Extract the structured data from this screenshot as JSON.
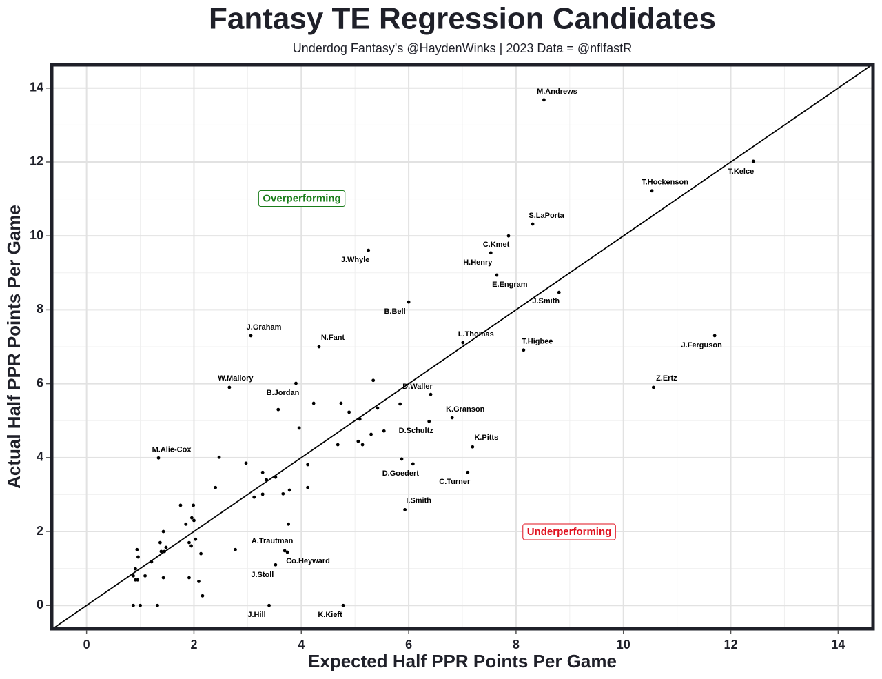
{
  "chart_data": {
    "type": "scatter",
    "title": "Fantasy TE Regression Candidates",
    "subtitle": "Underdog Fantasy's @HaydenWinks | 2023 Data = @nflfastR",
    "x_label": "Expected Half PPR Points Per Game",
    "y_label": "Actual Half PPR Points Per Game",
    "xlim": [
      -0.65,
      14.65
    ],
    "ylim": [
      -0.63,
      14.63
    ],
    "xticks": [
      0,
      2,
      4,
      6,
      8,
      10,
      12,
      14
    ],
    "yticks": [
      0,
      2,
      4,
      6,
      8,
      10,
      12,
      14
    ],
    "grid": true,
    "minor_grid": true,
    "diagonal": true,
    "color": "#000000",
    "points": {
      "x": [
        8.52,
        12.42,
        10.53,
        8.31,
        7.86,
        7.53,
        7.64,
        8.8,
        5.25,
        6.0,
        7.01,
        8.14,
        11.7,
        10.56,
        3.06,
        4.33,
        2.66,
        3.9,
        6.41,
        6.81,
        6.38,
        7.19,
        1.34,
        6.08,
        7.1,
        5.93,
        3.69,
        3.74,
        3.52,
        3.4,
        4.78,
        5.34,
        4.23,
        4.74,
        4.89,
        5.42,
        5.84,
        5.09,
        3.96,
        5.54,
        5.3,
        5.06,
        5.14,
        4.68,
        2.47,
        3.57,
        5.87,
        2.97,
        4.12,
        3.28,
        3.35,
        3.52,
        2.4,
        4.12,
        3.78,
        3.66,
        3.28,
        3.12,
        1.75,
        1.99,
        1.96,
        2.0,
        1.85,
        3.76,
        1.43,
        2.03,
        1.37,
        1.91,
        1.95,
        1.48,
        0.94,
        1.39,
        1.45,
        2.13,
        0.96,
        1.21,
        0.91,
        1.09,
        0.87,
        0.91,
        0.95,
        1.43,
        1.91,
        2.09,
        2.16,
        0.87,
        1.0,
        1.32,
        2.77
      ],
      "y": [
        13.68,
        12.02,
        11.22,
        10.32,
        10.0,
        9.54,
        8.94,
        8.47,
        9.61,
        8.21,
        7.11,
        6.91,
        7.3,
        5.9,
        7.3,
        7.0,
        5.9,
        6.01,
        5.71,
        5.08,
        4.98,
        4.29,
        3.99,
        3.83,
        3.6,
        2.59,
        1.48,
        1.44,
        1.1,
        0,
        0,
        6.09,
        5.47,
        5.47,
        5.23,
        5.34,
        5.45,
        5.04,
        4.8,
        4.72,
        4.63,
        4.44,
        4.35,
        4.35,
        4.01,
        5.3,
        3.96,
        3.85,
        3.81,
        3.6,
        3.4,
        3.47,
        3.19,
        3.19,
        3.12,
        3.02,
        3.01,
        2.93,
        2.71,
        2.71,
        2.37,
        2.3,
        2.2,
        2.2,
        2.0,
        1.79,
        1.7,
        1.7,
        1.61,
        1.57,
        1.51,
        1.46,
        1.46,
        1.4,
        1.31,
        1.18,
        0.99,
        0.8,
        0.8,
        0.69,
        0.69,
        0.75,
        0.75,
        0.65,
        0.26,
        0,
        0,
        0,
        1.51
      ],
      "labels": [
        "M.Andrews",
        "T.Kelce",
        "T.Hockenson",
        "S.LaPorta",
        "C.Kmet",
        "H.Henry",
        "E.Engram",
        "J.Smith",
        "J.Whyle",
        "B.Bell",
        "L.Thomas",
        "T.Higbee",
        "J.Ferguson",
        "Z.Ertz",
        "J.Graham",
        "N.Fant",
        "W.Mallory",
        "B.Jordan",
        "D.Waller",
        "K.Granson",
        "D.Schultz",
        "K.Pitts",
        "M.Alie-Cox",
        "D.Goedert",
        "C.Turner",
        "I.Smith",
        "A.Trautman",
        "Co.Heyward",
        "J.Stoll",
        "J.Hill",
        "K.Kieft",
        null,
        null,
        null,
        null,
        null,
        null,
        null,
        null,
        null,
        null,
        null,
        null,
        null,
        null,
        null,
        null,
        null,
        null,
        null,
        null,
        null,
        null,
        null,
        null,
        null,
        null,
        null,
        null,
        null,
        null,
        null,
        null,
        null,
        null,
        null,
        null,
        null,
        null,
        null,
        null,
        null,
        null,
        null,
        null,
        null,
        null,
        null,
        null,
        null,
        null,
        null,
        null,
        null,
        null,
        null,
        null,
        null,
        null
      ]
    },
    "annotations": [
      {
        "text": "Overperforming",
        "x": 4.01,
        "y": 11.0,
        "color": "#1a7d1a"
      },
      {
        "text": "Underperforming",
        "x": 8.99,
        "y": 1.98,
        "color": "#e0101e"
      }
    ]
  }
}
